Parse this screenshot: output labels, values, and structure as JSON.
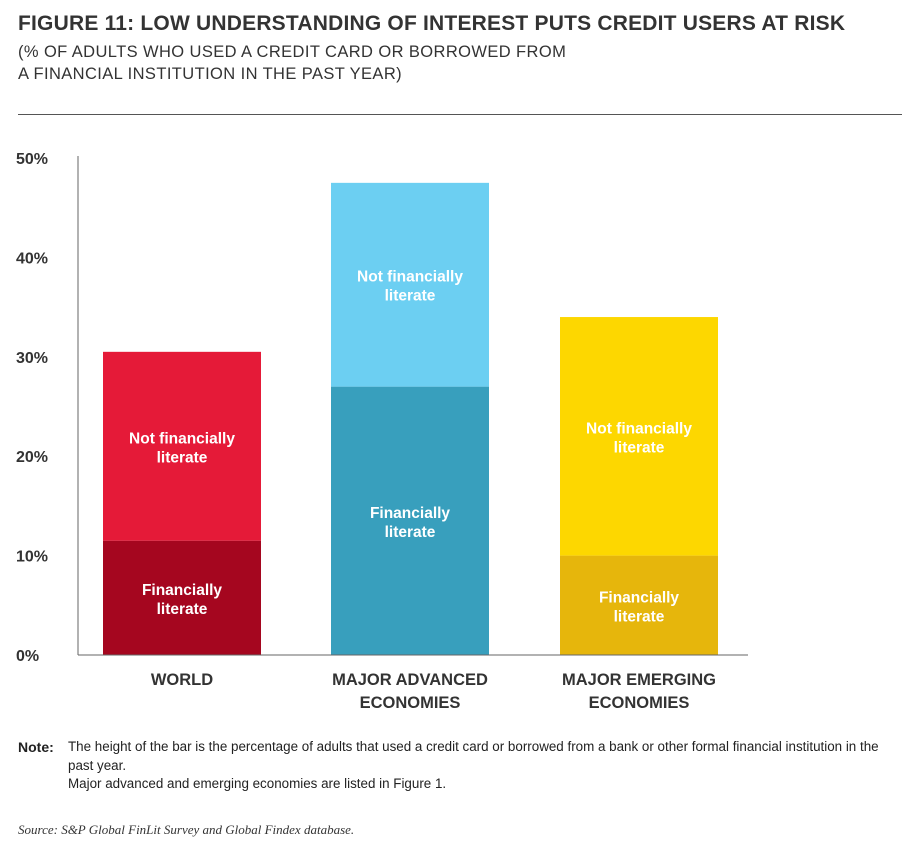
{
  "title": "FIGURE 11: LOW UNDERSTANDING OF INTEREST PUTS CREDIT USERS AT RISK",
  "subtitle_lines": [
    "(% OF ADULTS WHO USED A CREDIT CARD OR BORROWED FROM",
    "A FINANCIAL INSTITUTION IN THE PAST YEAR)"
  ],
  "note": {
    "label": "Note:",
    "line1": "The height of the bar is the percentage of adults that used a credit card or borrowed from a bank or other formal financial institution in the past year.",
    "line2": "Major advanced and emerging economies are listed in Figure 1."
  },
  "source": "Source: S&P Global FinLit Survey and Global Findex database.",
  "chart_data": {
    "type": "bar",
    "stacked": true,
    "categories": [
      [
        "WORLD"
      ],
      [
        "MAJOR ADVANCED",
        "ECONOMIES"
      ],
      [
        "MAJOR EMERGING",
        "ECONOMIES"
      ]
    ],
    "yticks": [
      "0%",
      "10%",
      "20%",
      "30%",
      "40%",
      "50%"
    ],
    "ylim": [
      0,
      50
    ],
    "segments": [
      {
        "label": [
          "Financially",
          "literate"
        ],
        "values": [
          11.5,
          27,
          10
        ],
        "colors": [
          "#a5061f",
          "#389fbd",
          "#e6b60c"
        ]
      },
      {
        "label": [
          "Not financially",
          "literate"
        ],
        "values": [
          19,
          20.5,
          24
        ],
        "colors": [
          "#e51a38",
          "#6ccff2",
          "#fdd700"
        ]
      }
    ]
  }
}
